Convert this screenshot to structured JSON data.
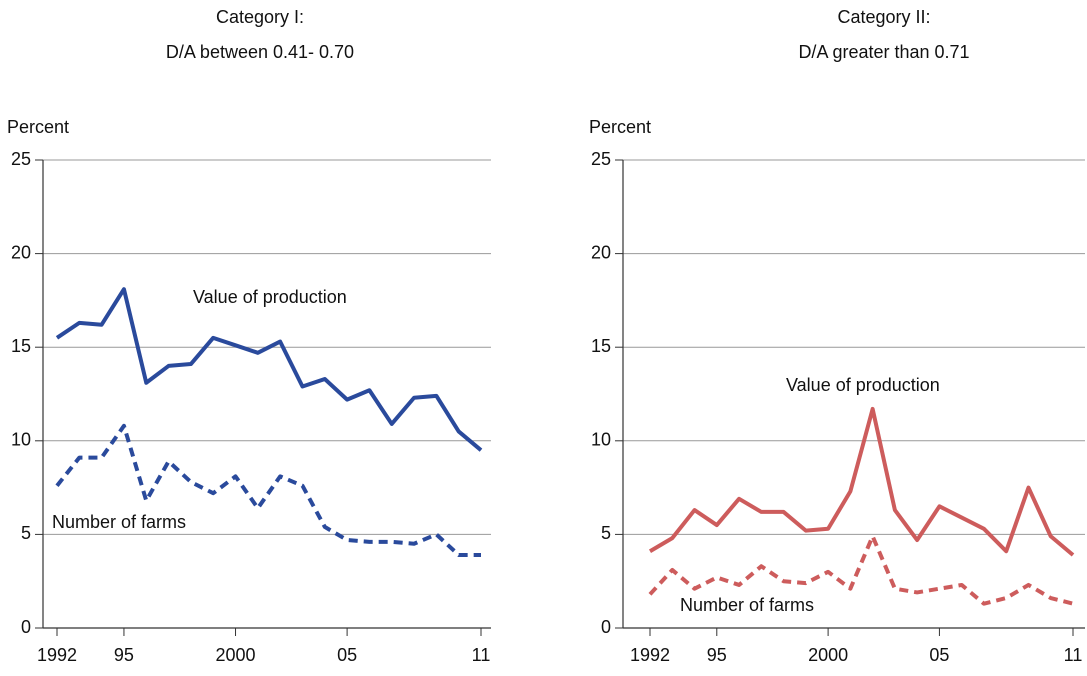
{
  "chart_data": [
    {
      "type": "line",
      "title": [
        "Category I:",
        "D/A between 0.41- 0.70"
      ],
      "ylabel": "Percent",
      "x": [
        1992,
        1993,
        1994,
        1995,
        1996,
        1997,
        1998,
        1999,
        2000,
        2001,
        2002,
        2003,
        2004,
        2005,
        2006,
        2007,
        2008,
        2009,
        2010,
        2011
      ],
      "series": [
        {
          "name": "Value of production",
          "color": "#2a4a9c",
          "style": "solid",
          "values": [
            15.5,
            16.3,
            16.2,
            18.1,
            13.1,
            14.0,
            14.1,
            15.5,
            15.1,
            14.7,
            15.3,
            12.9,
            13.3,
            12.2,
            12.7,
            10.9,
            12.3,
            12.4,
            10.5,
            9.5
          ]
        },
        {
          "name": "Number of farms",
          "color": "#2a4a9c",
          "style": "dashed",
          "values": [
            7.6,
            9.1,
            9.1,
            10.8,
            6.8,
            8.9,
            7.8,
            7.2,
            8.1,
            6.4,
            8.1,
            7.6,
            5.4,
            4.7,
            4.6,
            4.6,
            4.5,
            5.0,
            3.9,
            3.9
          ]
        }
      ],
      "xlim": [
        1992,
        2011
      ],
      "xticks": [
        1992,
        {
          "value": 1995,
          "label": "95"
        },
        2000,
        {
          "value": 2005,
          "label": "05"
        },
        {
          "value": 2011,
          "label": "11"
        }
      ],
      "ylim": [
        0,
        25
      ],
      "yticks": [
        0,
        5,
        10,
        15,
        20,
        25
      ],
      "grid": true
    },
    {
      "type": "line",
      "title": [
        "Category II:",
        "D/A greater than 0.71"
      ],
      "ylabel": "Percent",
      "x": [
        1992,
        1993,
        1994,
        1995,
        1996,
        1997,
        1998,
        1999,
        2000,
        2001,
        2002,
        2003,
        2004,
        2005,
        2006,
        2007,
        2008,
        2009,
        2010,
        2011
      ],
      "series": [
        {
          "name": "Value of production",
          "color": "#cd5c5c",
          "style": "solid",
          "values": [
            4.1,
            4.8,
            6.3,
            5.5,
            6.9,
            6.2,
            6.2,
            5.2,
            5.3,
            7.3,
            11.7,
            6.3,
            4.7,
            6.5,
            5.9,
            5.3,
            4.1,
            7.5,
            4.9,
            3.9
          ]
        },
        {
          "name": "Number of farms",
          "color": "#cd5c5c",
          "style": "dashed",
          "values": [
            1.8,
            3.1,
            2.1,
            2.7,
            2.3,
            3.3,
            2.5,
            2.4,
            3.0,
            2.1,
            4.9,
            2.1,
            1.9,
            2.1,
            2.3,
            1.3,
            1.6,
            2.3,
            1.6,
            1.3
          ]
        }
      ],
      "xlim": [
        1992,
        2011
      ],
      "xticks": [
        1992,
        {
          "value": 1995,
          "label": "95"
        },
        2000,
        {
          "value": 2005,
          "label": "05"
        },
        {
          "value": 2011,
          "label": "11"
        }
      ],
      "ylim": [
        0,
        25
      ],
      "yticks": [
        0,
        5,
        10,
        15,
        20,
        25
      ],
      "grid": true
    }
  ]
}
